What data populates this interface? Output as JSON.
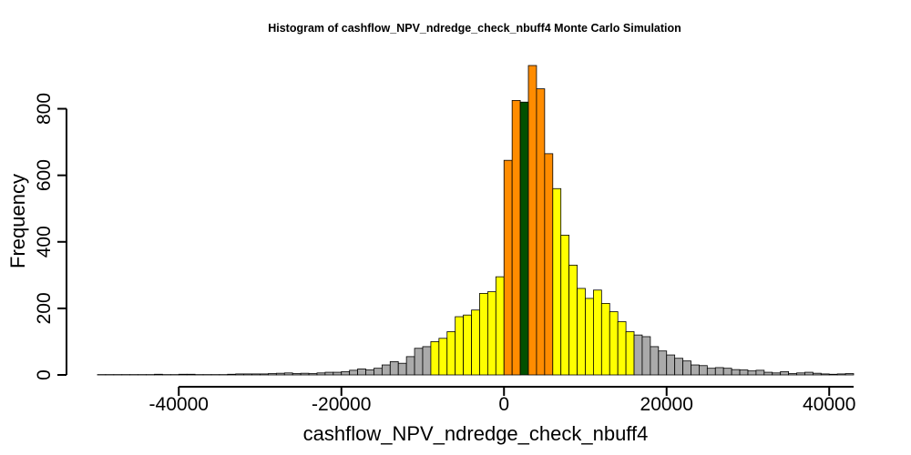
{
  "chart_data": {
    "type": "bar",
    "title": "Histogram of  cashflow_NPV_ndredge_check_nbuff4  Monte Carlo Simulation",
    "xlabel": "cashflow_NPV_ndredge_check_nbuff4",
    "ylabel": "Frequency",
    "xlim": [
      -50000,
      43000
    ],
    "ylim": [
      0,
      930
    ],
    "bin_width": 1000,
    "x_ticks": [
      -40000,
      -20000,
      0,
      20000,
      40000
    ],
    "x_tick_labels": [
      "-40000",
      "-20000",
      "0",
      "20000",
      "40000"
    ],
    "y_ticks": [
      0,
      200,
      400,
      600,
      800
    ],
    "y_tick_labels": [
      "0",
      "200",
      "400",
      "600",
      "800"
    ],
    "grid": false,
    "bin_starts": [
      -50000,
      -49000,
      -48000,
      -47000,
      -46000,
      -45000,
      -44000,
      -43000,
      -42000,
      -41000,
      -40000,
      -39000,
      -38000,
      -37000,
      -36000,
      -35000,
      -34000,
      -33000,
      -32000,
      -31000,
      -30000,
      -29000,
      -28000,
      -27000,
      -26000,
      -25000,
      -24000,
      -23000,
      -22000,
      -21000,
      -20000,
      -19000,
      -18000,
      -17000,
      -16000,
      -15000,
      -14000,
      -13000,
      -12000,
      -11000,
      -10000,
      -9000,
      -8000,
      -7000,
      -6000,
      -5000,
      -4000,
      -3000,
      -2000,
      -1000,
      0,
      1000,
      2000,
      3000,
      4000,
      5000,
      6000,
      7000,
      8000,
      9000,
      10000,
      11000,
      12000,
      13000,
      14000,
      15000,
      16000,
      17000,
      18000,
      19000,
      20000,
      21000,
      22000,
      23000,
      24000,
      25000,
      26000,
      27000,
      28000,
      29000,
      30000,
      31000,
      32000,
      33000,
      34000,
      35000,
      36000,
      37000,
      38000,
      39000,
      40000,
      41000,
      42000
    ],
    "values": [
      1,
      1,
      1,
      1,
      1,
      1,
      1,
      2,
      1,
      1,
      2,
      2,
      1,
      1,
      1,
      1,
      2,
      3,
      3,
      3,
      3,
      4,
      5,
      6,
      4,
      5,
      4,
      6,
      8,
      8,
      10,
      14,
      18,
      15,
      20,
      30,
      40,
      35,
      55,
      80,
      85,
      100,
      110,
      130,
      175,
      180,
      195,
      245,
      250,
      295,
      645,
      825,
      820,
      930,
      860,
      665,
      560,
      420,
      330,
      260,
      230,
      255,
      215,
      190,
      160,
      130,
      120,
      115,
      85,
      72,
      60,
      50,
      42,
      30,
      28,
      20,
      22,
      20,
      16,
      15,
      12,
      14,
      8,
      6,
      10,
      4,
      6,
      8,
      5,
      3,
      2,
      3,
      4
    ],
    "series": [
      {
        "color_group": "gray",
        "x_range": [
          -50000,
          -9000
        ],
        "color": "#aaaaaa"
      },
      {
        "color_group": "yellow",
        "x_range": [
          -9000,
          0
        ],
        "color": "#ffff00"
      },
      {
        "color_group": "orange",
        "x_range": [
          0,
          2000
        ],
        "color": "#ff8c00"
      },
      {
        "color_group": "green",
        "x_range": [
          2000,
          3000
        ],
        "color": "#005000"
      },
      {
        "color_group": "orange",
        "x_range": [
          3000,
          6000
        ],
        "color": "#ff8c00"
      },
      {
        "color_group": "yellow",
        "x_range": [
          6000,
          16000
        ],
        "color": "#ffff00"
      },
      {
        "color_group": "gray",
        "x_range": [
          16000,
          43000
        ],
        "color": "#aaaaaa"
      }
    ]
  }
}
